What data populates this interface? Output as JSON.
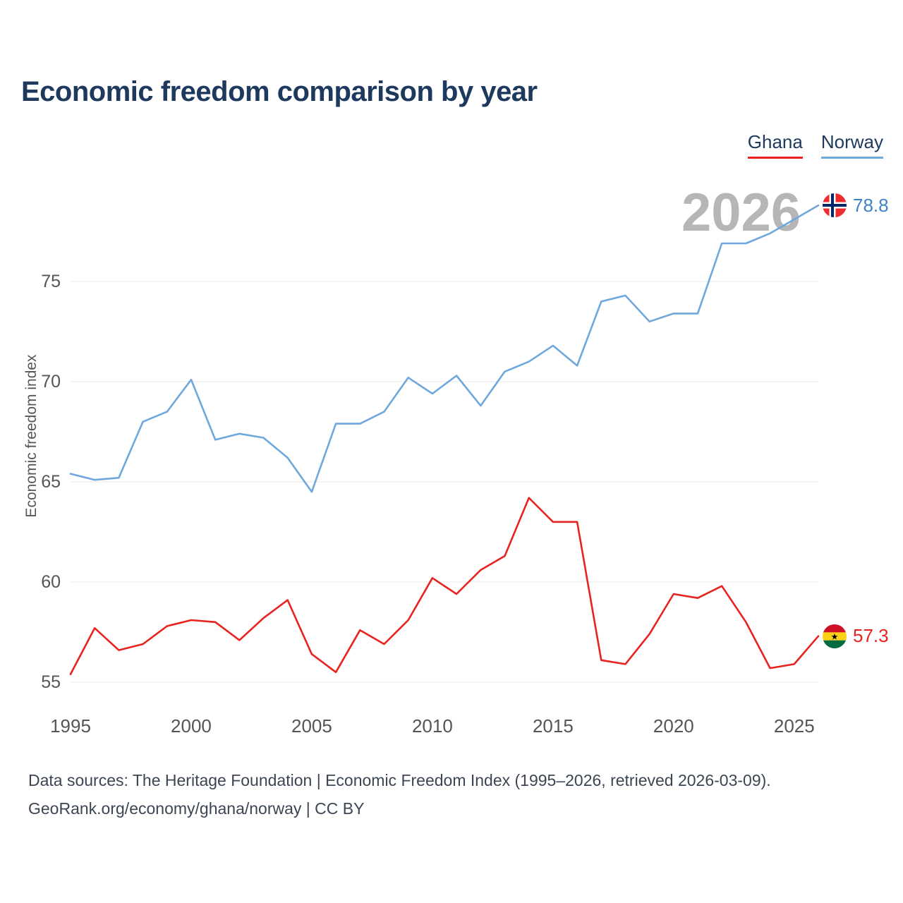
{
  "page": {
    "title": "Economic freedom comparison by year",
    "watermark": "2026",
    "footer_line1": "Data sources: The Heritage Foundation | Economic Freedom Index (1995–2026, retrieved 2026-03-09).",
    "footer_line2": "GeoRank.org/economy/ghana/norway | CC BY"
  },
  "legend": {
    "items": [
      {
        "label": "Ghana",
        "color": "#e8231f"
      },
      {
        "label": "Norway",
        "color": "#6fa8dc"
      }
    ]
  },
  "chart_data": {
    "type": "line",
    "title": "Economic freedom comparison by year",
    "xlabel": "",
    "ylabel": "Economic freedom index",
    "watermark": "2026",
    "grid": "horizontal",
    "legend_position": "top-right",
    "x": [
      1995,
      1996,
      1997,
      1998,
      1999,
      2000,
      2001,
      2002,
      2003,
      2004,
      2005,
      2006,
      2007,
      2008,
      2009,
      2010,
      2011,
      2012,
      2013,
      2014,
      2015,
      2016,
      2017,
      2018,
      2019,
      2020,
      2021,
      2022,
      2023,
      2024,
      2025,
      2026
    ],
    "x_ticks": [
      1995,
      2000,
      2005,
      2010,
      2015,
      2020,
      2025
    ],
    "y_ticks": [
      55,
      60,
      65,
      70,
      75
    ],
    "ylim": [
      54.5,
      79.5
    ],
    "series": [
      {
        "name": "Ghana",
        "color": "#e8231f",
        "value_color": "#e8231f",
        "end_label": "57.3",
        "values": [
          55.4,
          57.7,
          56.6,
          56.9,
          57.8,
          58.1,
          58.0,
          57.1,
          58.2,
          59.1,
          56.4,
          55.5,
          57.6,
          56.9,
          58.1,
          60.2,
          59.4,
          60.6,
          61.3,
          64.2,
          63.0,
          63.0,
          56.1,
          55.9,
          57.4,
          59.4,
          59.2,
          59.8,
          58.0,
          55.7,
          55.9,
          57.3
        ]
      },
      {
        "name": "Norway",
        "color": "#6fa8dc",
        "value_color": "#3f83c9",
        "end_label": "78.8",
        "values": [
          65.4,
          65.1,
          65.2,
          68.0,
          68.5,
          70.1,
          67.1,
          67.4,
          67.2,
          66.2,
          64.5,
          67.9,
          67.9,
          68.5,
          70.2,
          69.4,
          70.3,
          68.8,
          70.5,
          71.0,
          71.8,
          70.8,
          74.0,
          74.3,
          73.0,
          73.4,
          73.4,
          76.9,
          76.9,
          77.4,
          78.1,
          78.8
        ]
      }
    ]
  }
}
